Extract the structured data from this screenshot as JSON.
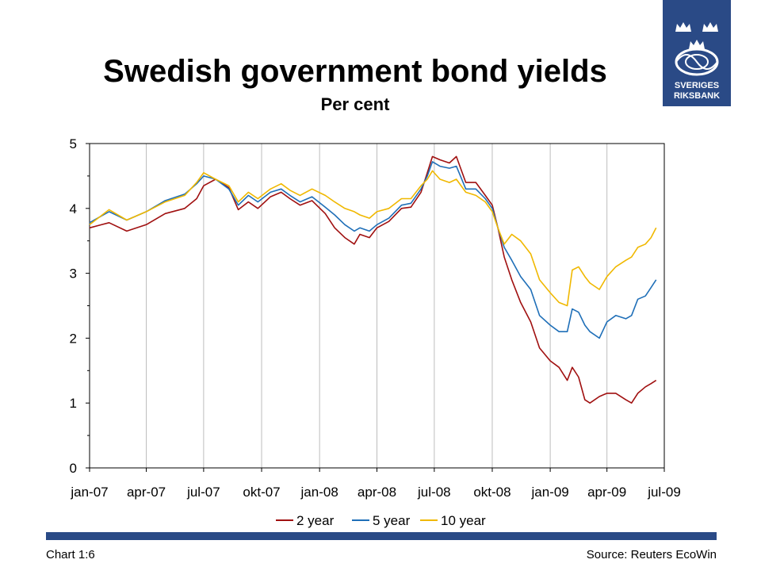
{
  "header": {
    "title": "Swedish government bond yields",
    "subtitle": "Per cent"
  },
  "logo": {
    "line1": "SVERIGES",
    "line2": "RIKSBANK",
    "color": "#2a4a86"
  },
  "footer": {
    "chart_id": "Chart 1:6",
    "source": "Source: Reuters EcoWin"
  },
  "chart_data": {
    "type": "line",
    "title": "Swedish government bond yields",
    "ylabel": "Per cent",
    "ylim": [
      0,
      5
    ],
    "y_ticks": [
      0,
      1,
      2,
      3,
      4,
      5
    ],
    "xlim": [
      "2007-01-01",
      "2009-07-01"
    ],
    "x_ticks": [
      {
        "date": "2007-01-01",
        "label": "jan-07"
      },
      {
        "date": "2007-04-01",
        "label": "apr-07"
      },
      {
        "date": "2007-07-01",
        "label": "jul-07"
      },
      {
        "date": "2007-10-01",
        "label": "okt-07"
      },
      {
        "date": "2008-01-01",
        "label": "jan-08"
      },
      {
        "date": "2008-04-01",
        "label": "apr-08"
      },
      {
        "date": "2008-07-01",
        "label": "jul-08"
      },
      {
        "date": "2008-10-01",
        "label": "okt-08"
      },
      {
        "date": "2009-01-01",
        "label": "jan-09"
      },
      {
        "date": "2009-04-01",
        "label": "apr-09"
      },
      {
        "date": "2009-07-01",
        "label": "jul-09"
      }
    ],
    "grid": "vertical",
    "legend": "bottom",
    "series": [
      {
        "name": "2 year",
        "color": "#a01010",
        "points": [
          [
            "2007-01-01",
            3.7
          ],
          [
            "2007-02-01",
            3.78
          ],
          [
            "2007-03-01",
            3.65
          ],
          [
            "2007-04-01",
            3.75
          ],
          [
            "2007-05-01",
            3.92
          ],
          [
            "2007-06-01",
            4.0
          ],
          [
            "2007-06-20",
            4.15
          ],
          [
            "2007-07-01",
            4.35
          ],
          [
            "2007-07-20",
            4.45
          ],
          [
            "2007-08-10",
            4.32
          ],
          [
            "2007-08-25",
            3.98
          ],
          [
            "2007-09-10",
            4.1
          ],
          [
            "2007-09-25",
            4.0
          ],
          [
            "2007-10-15",
            4.18
          ],
          [
            "2007-11-01",
            4.25
          ],
          [
            "2007-11-15",
            4.15
          ],
          [
            "2007-12-01",
            4.05
          ],
          [
            "2007-12-20",
            4.12
          ],
          [
            "2008-01-10",
            3.92
          ],
          [
            "2008-01-25",
            3.7
          ],
          [
            "2008-02-10",
            3.55
          ],
          [
            "2008-02-25",
            3.45
          ],
          [
            "2008-03-05",
            3.6
          ],
          [
            "2008-03-20",
            3.55
          ],
          [
            "2008-04-01",
            3.7
          ],
          [
            "2008-04-20",
            3.8
          ],
          [
            "2008-05-10",
            4.0
          ],
          [
            "2008-05-25",
            4.02
          ],
          [
            "2008-06-10",
            4.25
          ],
          [
            "2008-06-20",
            4.55
          ],
          [
            "2008-06-28",
            4.8
          ],
          [
            "2008-07-10",
            4.75
          ],
          [
            "2008-07-25",
            4.7
          ],
          [
            "2008-08-05",
            4.8
          ],
          [
            "2008-08-20",
            4.4
          ],
          [
            "2008-09-05",
            4.4
          ],
          [
            "2008-09-20",
            4.2
          ],
          [
            "2008-10-01",
            4.05
          ],
          [
            "2008-10-10",
            3.7
          ],
          [
            "2008-10-20",
            3.25
          ],
          [
            "2008-11-01",
            2.9
          ],
          [
            "2008-11-15",
            2.55
          ],
          [
            "2008-12-01",
            2.25
          ],
          [
            "2008-12-15",
            1.85
          ],
          [
            "2009-01-01",
            1.65
          ],
          [
            "2009-01-15",
            1.55
          ],
          [
            "2009-01-28",
            1.35
          ],
          [
            "2009-02-05",
            1.55
          ],
          [
            "2009-02-15",
            1.4
          ],
          [
            "2009-02-25",
            1.05
          ],
          [
            "2009-03-05",
            1.0
          ],
          [
            "2009-03-20",
            1.1
          ],
          [
            "2009-04-01",
            1.15
          ],
          [
            "2009-04-15",
            1.15
          ],
          [
            "2009-05-01",
            1.05
          ],
          [
            "2009-05-10",
            1.0
          ],
          [
            "2009-05-20",
            1.15
          ],
          [
            "2009-06-01",
            1.25
          ],
          [
            "2009-06-10",
            1.3
          ],
          [
            "2009-06-18",
            1.35
          ]
        ]
      },
      {
        "name": "5 year",
        "color": "#1f6fb8",
        "points": [
          [
            "2007-01-01",
            3.78
          ],
          [
            "2007-02-01",
            3.95
          ],
          [
            "2007-03-01",
            3.82
          ],
          [
            "2007-04-01",
            3.95
          ],
          [
            "2007-05-01",
            4.12
          ],
          [
            "2007-06-01",
            4.22
          ],
          [
            "2007-06-20",
            4.38
          ],
          [
            "2007-07-01",
            4.5
          ],
          [
            "2007-07-20",
            4.45
          ],
          [
            "2007-08-10",
            4.3
          ],
          [
            "2007-08-25",
            4.05
          ],
          [
            "2007-09-10",
            4.2
          ],
          [
            "2007-09-25",
            4.1
          ],
          [
            "2007-10-15",
            4.25
          ],
          [
            "2007-11-01",
            4.3
          ],
          [
            "2007-11-15",
            4.2
          ],
          [
            "2007-12-01",
            4.1
          ],
          [
            "2007-12-20",
            4.18
          ],
          [
            "2008-01-10",
            4.02
          ],
          [
            "2008-01-25",
            3.9
          ],
          [
            "2008-02-10",
            3.75
          ],
          [
            "2008-02-25",
            3.65
          ],
          [
            "2008-03-05",
            3.7
          ],
          [
            "2008-03-20",
            3.65
          ],
          [
            "2008-04-01",
            3.75
          ],
          [
            "2008-04-20",
            3.85
          ],
          [
            "2008-05-10",
            4.05
          ],
          [
            "2008-05-25",
            4.08
          ],
          [
            "2008-06-10",
            4.3
          ],
          [
            "2008-06-20",
            4.5
          ],
          [
            "2008-06-28",
            4.72
          ],
          [
            "2008-07-10",
            4.65
          ],
          [
            "2008-07-25",
            4.62
          ],
          [
            "2008-08-05",
            4.65
          ],
          [
            "2008-08-20",
            4.3
          ],
          [
            "2008-09-05",
            4.3
          ],
          [
            "2008-09-20",
            4.15
          ],
          [
            "2008-10-01",
            4.0
          ],
          [
            "2008-10-10",
            3.7
          ],
          [
            "2008-10-20",
            3.4
          ],
          [
            "2008-11-01",
            3.2
          ],
          [
            "2008-11-15",
            2.95
          ],
          [
            "2008-12-01",
            2.75
          ],
          [
            "2008-12-15",
            2.35
          ],
          [
            "2009-01-01",
            2.2
          ],
          [
            "2009-01-15",
            2.1
          ],
          [
            "2009-01-28",
            2.1
          ],
          [
            "2009-02-05",
            2.45
          ],
          [
            "2009-02-15",
            2.4
          ],
          [
            "2009-02-25",
            2.2
          ],
          [
            "2009-03-05",
            2.1
          ],
          [
            "2009-03-20",
            2.0
          ],
          [
            "2009-04-01",
            2.25
          ],
          [
            "2009-04-15",
            2.35
          ],
          [
            "2009-05-01",
            2.3
          ],
          [
            "2009-05-10",
            2.35
          ],
          [
            "2009-05-20",
            2.6
          ],
          [
            "2009-06-01",
            2.65
          ],
          [
            "2009-06-10",
            2.78
          ],
          [
            "2009-06-18",
            2.9
          ]
        ]
      },
      {
        "name": "10 year",
        "color": "#f0b800",
        "points": [
          [
            "2007-01-01",
            3.75
          ],
          [
            "2007-02-01",
            3.98
          ],
          [
            "2007-03-01",
            3.82
          ],
          [
            "2007-04-01",
            3.95
          ],
          [
            "2007-05-01",
            4.1
          ],
          [
            "2007-06-01",
            4.2
          ],
          [
            "2007-06-20",
            4.4
          ],
          [
            "2007-07-01",
            4.55
          ],
          [
            "2007-07-20",
            4.45
          ],
          [
            "2007-08-10",
            4.35
          ],
          [
            "2007-08-25",
            4.1
          ],
          [
            "2007-09-10",
            4.25
          ],
          [
            "2007-09-25",
            4.15
          ],
          [
            "2007-10-15",
            4.3
          ],
          [
            "2007-11-01",
            4.38
          ],
          [
            "2007-11-15",
            4.28
          ],
          [
            "2007-12-01",
            4.2
          ],
          [
            "2007-12-20",
            4.3
          ],
          [
            "2008-01-10",
            4.2
          ],
          [
            "2008-01-25",
            4.1
          ],
          [
            "2008-02-10",
            4.0
          ],
          [
            "2008-02-25",
            3.95
          ],
          [
            "2008-03-05",
            3.9
          ],
          [
            "2008-03-20",
            3.85
          ],
          [
            "2008-04-01",
            3.95
          ],
          [
            "2008-04-20",
            4.0
          ],
          [
            "2008-05-10",
            4.15
          ],
          [
            "2008-05-25",
            4.15
          ],
          [
            "2008-06-10",
            4.35
          ],
          [
            "2008-06-20",
            4.45
          ],
          [
            "2008-06-28",
            4.58
          ],
          [
            "2008-07-10",
            4.45
          ],
          [
            "2008-07-25",
            4.4
          ],
          [
            "2008-08-05",
            4.45
          ],
          [
            "2008-08-20",
            4.25
          ],
          [
            "2008-09-05",
            4.2
          ],
          [
            "2008-09-20",
            4.1
          ],
          [
            "2008-10-01",
            3.95
          ],
          [
            "2008-10-10",
            3.7
          ],
          [
            "2008-10-20",
            3.45
          ],
          [
            "2008-11-01",
            3.6
          ],
          [
            "2008-11-15",
            3.5
          ],
          [
            "2008-12-01",
            3.3
          ],
          [
            "2008-12-15",
            2.9
          ],
          [
            "2009-01-01",
            2.7
          ],
          [
            "2009-01-15",
            2.55
          ],
          [
            "2009-01-28",
            2.5
          ],
          [
            "2009-02-05",
            3.05
          ],
          [
            "2009-02-15",
            3.1
          ],
          [
            "2009-02-25",
            2.95
          ],
          [
            "2009-03-05",
            2.85
          ],
          [
            "2009-03-20",
            2.75
          ],
          [
            "2009-04-01",
            2.95
          ],
          [
            "2009-04-15",
            3.1
          ],
          [
            "2009-05-01",
            3.2
          ],
          [
            "2009-05-10",
            3.25
          ],
          [
            "2009-05-20",
            3.4
          ],
          [
            "2009-06-01",
            3.45
          ],
          [
            "2009-06-10",
            3.55
          ],
          [
            "2009-06-18",
            3.7
          ]
        ]
      }
    ]
  }
}
